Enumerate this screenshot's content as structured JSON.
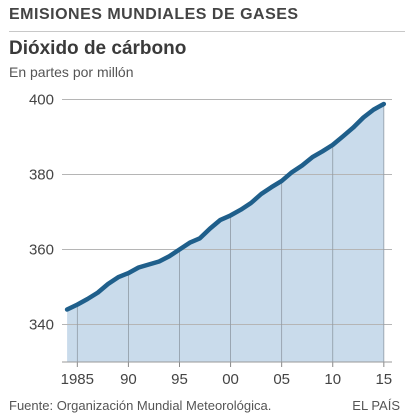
{
  "header": {
    "title": "EMISIONES MUNDIALES DE GASES",
    "subtitle": "Dióxido de cárbono",
    "unit": "En partes por millón"
  },
  "footer": {
    "source": "Fuente: Organización Mundial Meteorológica.",
    "brand": "EL PAÍS"
  },
  "colors": {
    "line": "#1f5f8b",
    "area": "#c9dbeb",
    "grid": "#b5b5b5"
  },
  "chart_data": {
    "type": "area",
    "title": "",
    "xlabel": "",
    "ylabel": "",
    "x": [
      1984,
      1985,
      1986,
      1987,
      1988,
      1989,
      1990,
      1991,
      1992,
      1993,
      1994,
      1995,
      1996,
      1997,
      1998,
      1999,
      2000,
      2001,
      2002,
      2003,
      2004,
      2005,
      2006,
      2007,
      2008,
      2009,
      2010,
      2011,
      2012,
      2013,
      2014,
      2015
    ],
    "series": [
      {
        "values": [
          344.0,
          345.3,
          346.8,
          348.5,
          350.8,
          352.6,
          353.7,
          355.2,
          356.0,
          356.8,
          358.2,
          360.0,
          361.8,
          363.0,
          365.6,
          367.9,
          369.1,
          370.6,
          372.4,
          374.8,
          376.6,
          378.3,
          380.6,
          382.4,
          384.6,
          386.2,
          387.9,
          390.2,
          392.5,
          395.2,
          397.3,
          398.8
        ]
      }
    ],
    "xlim": [
      1983.5,
      2015.8
    ],
    "ylim": [
      330,
      402
    ],
    "yticks": [
      340,
      360,
      380,
      400
    ],
    "xticks": [
      1985,
      1990,
      1995,
      2000,
      2005,
      2010,
      2015
    ],
    "xtick_labels": [
      "1985",
      "90",
      "95",
      "00",
      "05",
      "10",
      "15"
    ],
    "grid": true
  }
}
